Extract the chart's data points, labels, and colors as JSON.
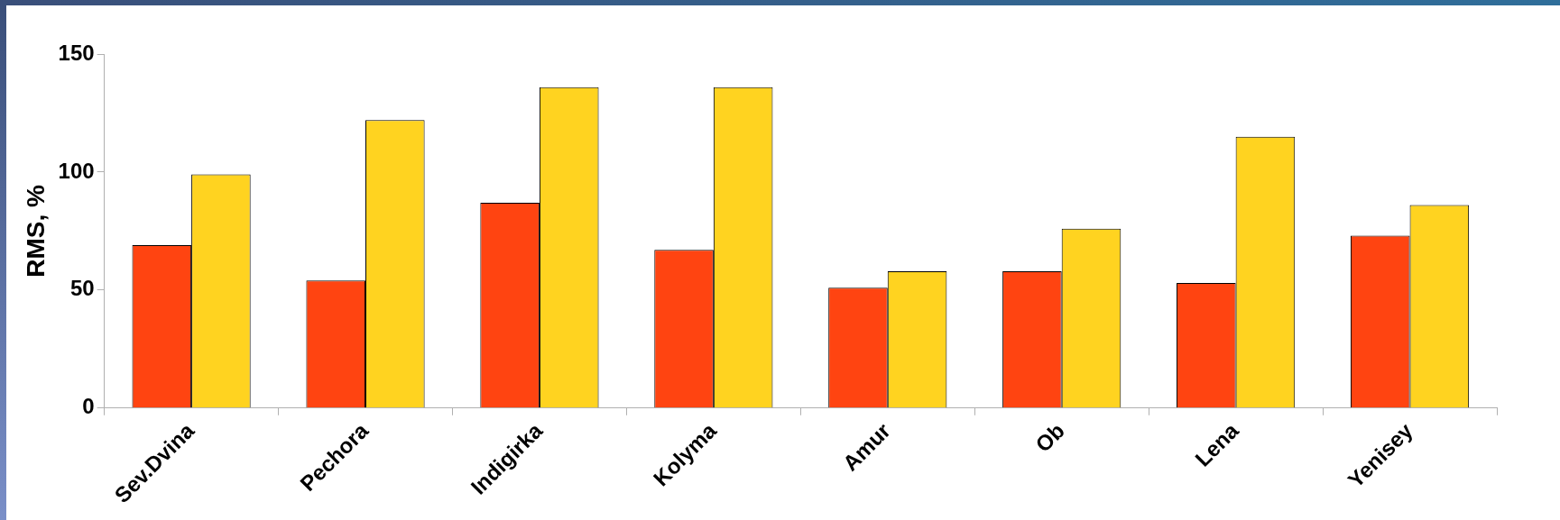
{
  "chart_data": {
    "type": "bar",
    "ylabel": "RMS, %",
    "categories": [
      "Sev.Dvina",
      "Pechora",
      "Indigirka",
      "Kolyma",
      "Amur",
      "Ob",
      "Lena",
      "Yenisey"
    ],
    "series": [
      {
        "color": "#ff4411",
        "values": [
          69,
          54,
          87,
          67,
          51,
          58,
          53,
          73
        ]
      },
      {
        "color": "#ffd320",
        "values": [
          99,
          122,
          136,
          136,
          58,
          76,
          115,
          86
        ]
      }
    ],
    "ylim": [
      0,
      150
    ],
    "yticks": [
      0,
      50,
      100,
      150
    ],
    "grid": false,
    "legend": false
  }
}
